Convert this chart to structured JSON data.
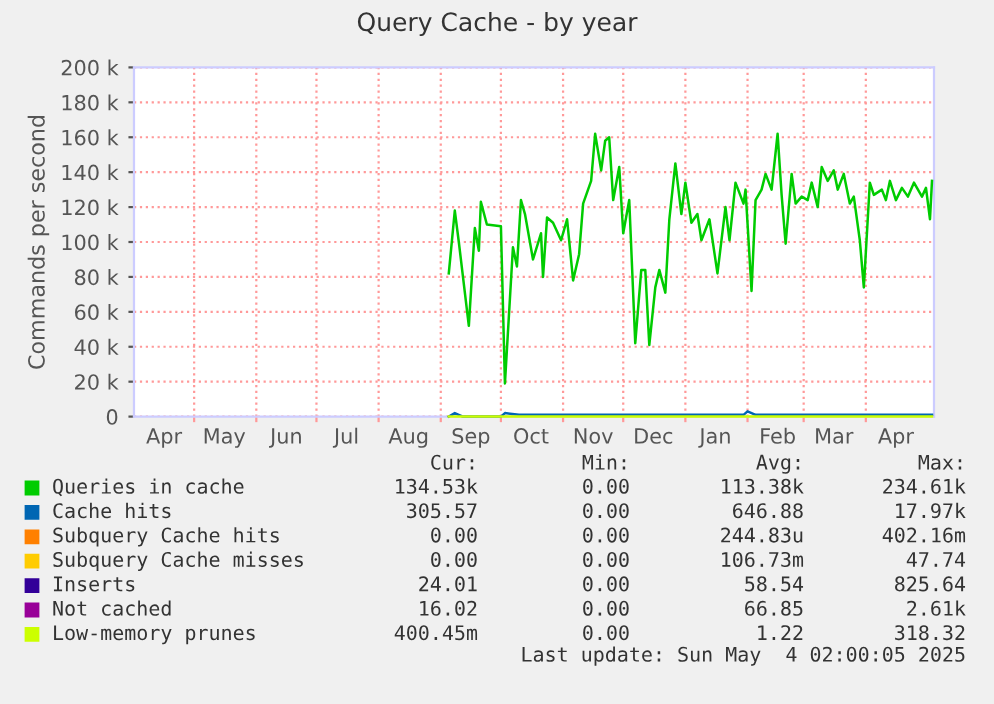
{
  "chart_data": {
    "type": "line",
    "title": "Query Cache - by year",
    "ylabel": "Commands per second",
    "xlim": [
      "2024-04-01",
      "2025-05-05"
    ],
    "xticks": [
      {
        "value": "2024-05-01",
        "label": null
      },
      {
        "value": "2024-06-01",
        "label": null
      },
      {
        "value": "2024-07-01",
        "label": null
      },
      {
        "value": "2024-08-01",
        "label": null
      },
      {
        "value": "2024-09-01",
        "label": null
      },
      {
        "value": "2024-10-01",
        "label": null
      },
      {
        "value": "2024-11-01",
        "label": null
      },
      {
        "value": "2024-12-01",
        "label": null
      },
      {
        "value": "2025-01-01",
        "label": null
      },
      {
        "value": "2025-02-01",
        "label": null
      },
      {
        "value": "2025-03-01",
        "label": null
      },
      {
        "value": "2025-04-01",
        "label": null
      },
      {
        "value": "2024-04-16",
        "label": "Apr"
      },
      {
        "value": "2024-05-16",
        "label": "May"
      },
      {
        "value": "2024-06-16",
        "label": "Jun"
      },
      {
        "value": "2024-07-16",
        "label": "Jul"
      },
      {
        "value": "2024-08-16",
        "label": "Aug"
      },
      {
        "value": "2024-09-16",
        "label": "Sep"
      },
      {
        "value": "2024-10-16",
        "label": "Oct"
      },
      {
        "value": "2024-11-16",
        "label": "Nov"
      },
      {
        "value": "2024-12-16",
        "label": "Dec"
      },
      {
        "value": "2025-01-16",
        "label": "Jan"
      },
      {
        "value": "2025-02-16",
        "label": "Feb"
      },
      {
        "value": "2025-03-16",
        "label": "Mar"
      },
      {
        "value": "2025-04-16",
        "label": "Apr"
      }
    ],
    "ylim": [
      0,
      200000
    ],
    "yticks": [
      0,
      {
        "value": 20000,
        "label": "20 k"
      },
      {
        "value": 40000,
        "label": "40 k"
      },
      {
        "value": 60000,
        "label": "60 k"
      },
      {
        "value": 80000,
        "label": "80 k"
      },
      {
        "value": 100000,
        "label": "100 k"
      },
      {
        "value": 120000,
        "label": "120 k"
      },
      {
        "value": 140000,
        "label": "140 k"
      },
      {
        "value": 160000,
        "label": "160 k"
      },
      {
        "value": 180000,
        "label": "180 k"
      },
      {
        "value": 200000,
        "label": "200 k"
      }
    ],
    "grid": true,
    "legend": "bottom",
    "line_style": "solid",
    "marker": "none",
    "series": [
      {
        "name": "Queries in cache",
        "color": "#00cc00",
        "x": [
          "2024-09-05",
          "2024-09-08",
          "2024-09-10",
          "2024-09-15",
          "2024-09-18",
          "2024-09-20",
          "2024-09-21",
          "2024-09-24",
          "2024-10-01",
          "2024-10-03",
          "2024-10-07",
          "2024-10-09",
          "2024-10-11",
          "2024-10-13",
          "2024-10-17",
          "2024-10-21",
          "2024-10-22",
          "2024-10-24",
          "2024-10-27",
          "2024-10-31",
          "2024-11-03",
          "2024-11-06",
          "2024-11-09",
          "2024-11-11",
          "2024-11-15",
          "2024-11-17",
          "2024-11-20",
          "2024-11-22",
          "2024-11-24",
          "2024-11-26",
          "2024-11-29",
          "2024-12-01",
          "2024-12-04",
          "2024-12-07",
          "2024-12-10",
          "2024-12-12",
          "2024-12-14",
          "2024-12-17",
          "2024-12-19",
          "2024-12-22",
          "2024-12-24",
          "2024-12-27",
          "2024-12-30",
          "2025-01-01",
          "2025-01-04",
          "2025-01-07",
          "2025-01-09",
          "2025-01-13",
          "2025-01-17",
          "2025-01-21",
          "2025-01-23",
          "2025-01-26",
          "2025-01-30",
          "2025-01-31",
          "2025-02-03",
          "2025-02-05",
          "2025-02-08",
          "2025-02-10",
          "2025-02-13",
          "2025-02-16",
          "2025-02-18",
          "2025-02-20",
          "2025-02-23",
          "2025-02-25",
          "2025-02-28",
          "2025-03-03",
          "2025-03-05",
          "2025-03-08",
          "2025-03-10",
          "2025-03-13",
          "2025-03-16",
          "2025-03-18",
          "2025-03-21",
          "2025-03-24",
          "2025-03-26",
          "2025-03-29",
          "2025-03-31",
          "2025-04-03",
          "2025-04-05",
          "2025-04-09",
          "2025-04-11",
          "2025-04-13",
          "2025-04-16",
          "2025-04-19",
          "2025-04-22",
          "2025-04-25",
          "2025-04-29",
          "2025-05-01",
          "2025-05-03",
          "2025-05-04"
        ],
        "values": [
          82000,
          118000,
          100000,
          52000,
          108000,
          95000,
          123000,
          110000,
          109000,
          19000,
          97000,
          86000,
          124000,
          116000,
          90000,
          105000,
          80000,
          114000,
          111000,
          101000,
          113000,
          78000,
          93000,
          122000,
          135000,
          162000,
          141000,
          158000,
          160000,
          124000,
          143000,
          105000,
          124000,
          42000,
          84000,
          84000,
          41000,
          74000,
          84000,
          71000,
          113000,
          145000,
          116000,
          134000,
          111000,
          116000,
          101000,
          113000,
          82000,
          120000,
          101000,
          134000,
          122000,
          130000,
          72000,
          124000,
          130000,
          139000,
          130000,
          162000,
          127000,
          99000,
          139000,
          122000,
          126000,
          124000,
          134000,
          120000,
          143000,
          135000,
          141000,
          130000,
          139000,
          122000,
          126000,
          101000,
          74000,
          134000,
          127000,
          130000,
          124000,
          135000,
          124000,
          131000,
          126000,
          134000,
          126000,
          131000,
          113000,
          135000
        ]
      },
      {
        "name": "Cache hits",
        "color": "#0066b3",
        "x": [
          "2024-09-05",
          "2024-09-08",
          "2024-09-12",
          "2024-10-01",
          "2024-10-03",
          "2024-10-10",
          "2025-01-30",
          "2025-02-01",
          "2025-02-05",
          "2025-05-04"
        ],
        "values": [
          0,
          2000,
          0,
          0,
          2000,
          1000,
          1000,
          3000,
          1000,
          1000
        ]
      },
      {
        "name": "Subquery Cache hits",
        "color": "#ff8000"
      },
      {
        "name": "Subquery Cache misses",
        "color": "#ffcc00"
      },
      {
        "name": "Inserts",
        "color": "#330099"
      },
      {
        "name": "Not cached",
        "color": "#990099"
      },
      {
        "name": "Low-memory prunes",
        "color": "#ccff00",
        "x": [
          "2024-09-05",
          "2025-05-04"
        ],
        "values": [
          0,
          0
        ]
      }
    ],
    "annotations": [
      "Cur:",
      "Min:",
      "Avg:",
      "Max:",
      "134.53k",
      "0.00",
      "113.38k",
      "234.61k",
      "305.57",
      "0.00",
      "646.88",
      "17.97k",
      "0.00",
      "0.00",
      "244.83u",
      "402.16m",
      "0.00",
      "0.00",
      "106.73m",
      "47.74",
      "24.01",
      "0.00",
      "58.54",
      "825.64",
      "16.02",
      "0.00",
      "66.85",
      "2.61k",
      "400.45m",
      "0.00",
      "1.22",
      "318.32",
      "Last update: Sun May  4 02:00:05 2025"
    ]
  }
}
